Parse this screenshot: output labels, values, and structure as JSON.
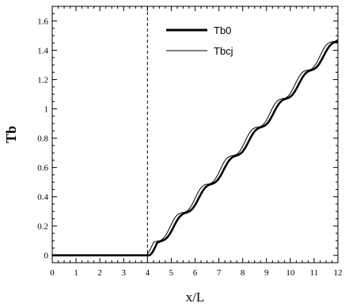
{
  "chart_data": {
    "type": "line",
    "xlabel": "x/L",
    "ylabel": "Tb",
    "xlim": [
      0,
      12
    ],
    "ylim": [
      -0.05,
      1.7
    ],
    "xticks": [
      0,
      1,
      2,
      3,
      4,
      5,
      6,
      7,
      8,
      9,
      10,
      11,
      12
    ],
    "yticks": [
      0,
      0.2,
      0.4,
      0.6,
      0.8,
      1,
      1.2,
      1.4,
      1.6
    ],
    "xtick_labels": [
      "0",
      "1",
      "2",
      "3",
      "4",
      "5",
      "6",
      "7",
      "8",
      "9",
      "10",
      "11",
      "12"
    ],
    "ytick_labels": [
      "0",
      "0.2",
      "0.4",
      "0.6",
      "0.8",
      "1",
      "1.2",
      "1.4",
      "1.6"
    ],
    "grid": false,
    "legend_position": "top-right",
    "reference_line": {
      "x": 4,
      "style": "dashed"
    },
    "series": [
      {
        "name": "Tb0",
        "line_width": "thick",
        "onset": 4.05,
        "slope": 0.1852,
        "wave_period": 1.05,
        "wave_amplitude": 0.022,
        "x_end": 12,
        "y_end": 1.48
      },
      {
        "name": "Tbcj",
        "line_width": "thin",
        "onset": 3.9,
        "slope": 0.1852,
        "wave_period": 1.05,
        "wave_amplitude": 0.026,
        "x_end": 12,
        "y_end": 1.52
      }
    ]
  }
}
